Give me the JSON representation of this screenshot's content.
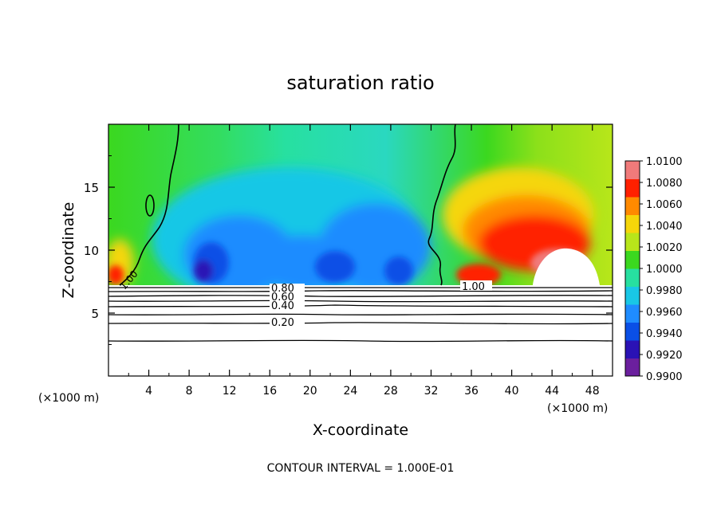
{
  "chart_data": {
    "type": "heatmap",
    "title": "saturation ratio",
    "xlabel": "X-coordinate",
    "ylabel": "Z-coordinate",
    "x_unit_label": "(×1000 m)",
    "x_unit_label_right": "(×1000 m)",
    "footer": "CONTOUR INTERVAL = 1.000E-01",
    "xlim": [
      0,
      50
    ],
    "ylim": [
      0,
      20
    ],
    "xticks": [
      "4",
      "8",
      "12",
      "16",
      "20",
      "24",
      "28",
      "32",
      "36",
      "40",
      "44",
      "48"
    ],
    "yticks": [
      "5",
      "10",
      "15"
    ],
    "contour_labels": [
      "1.00",
      "1.00",
      "0.80",
      "0.60",
      "0.40",
      "0.20"
    ],
    "colorbar": {
      "min": 0.99,
      "max": 1.01,
      "labels": [
        "1.0100",
        "1.0080",
        "1.0060",
        "1.0040",
        "1.0020",
        "1.0000",
        "0.9980",
        "0.9960",
        "0.9940",
        "0.9920",
        "0.9900"
      ],
      "colors": [
        "#6b1f9e",
        "#2a12b5",
        "#0a4fe6",
        "#1f8cff",
        "#19c7e6",
        "#27e0a0",
        "#3bd81f",
        "#b8e61a",
        "#f5d60a",
        "#ff8a00",
        "#ff2000",
        "#f07a7a"
      ]
    },
    "cloud_base_z": 7.3
  }
}
